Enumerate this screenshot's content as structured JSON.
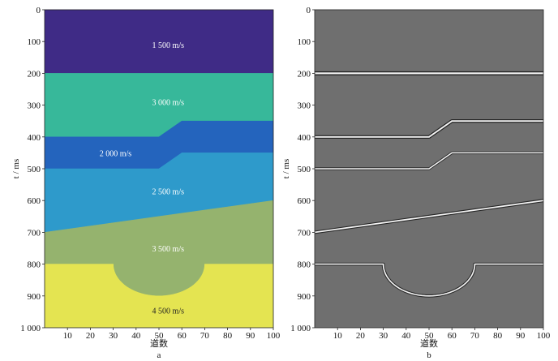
{
  "figure": {
    "y_axis_title": "t / ms",
    "x_axis_title": "道数",
    "background_gray": "#6f6f6f"
  },
  "chart_data": [
    {
      "panel": "a",
      "type": "velocity-model",
      "xlabel": "道数",
      "ylabel": "t / ms",
      "xlim": [
        0,
        100
      ],
      "ylim": [
        0,
        1000
      ],
      "xticks": [
        10,
        20,
        30,
        40,
        50,
        60,
        70,
        80,
        90,
        100
      ],
      "yticks": [
        0,
        100,
        200,
        300,
        400,
        500,
        600,
        700,
        800,
        900,
        1000
      ],
      "ytick_labels": [
        "0",
        "100",
        "200",
        "300",
        "400",
        "500",
        "600",
        "700",
        "800",
        "900",
        "1 000"
      ],
      "caption": "a",
      "layers": [
        {
          "label": "1 500 m/s",
          "color": "#3f2b86",
          "top": [
            [
              0,
              0
            ],
            [
              100,
              0
            ]
          ],
          "bottom": [
            [
              0,
              200
            ],
            [
              100,
              200
            ]
          ],
          "label_at": [
            54,
            110
          ]
        },
        {
          "label": "3 000 m/s",
          "color": "#37b89a",
          "top": [
            [
              0,
              200
            ],
            [
              100,
              200
            ]
          ],
          "bottom": [
            [
              0,
              400
            ],
            [
              50,
              400
            ],
            [
              60,
              350
            ],
            [
              100,
              350
            ]
          ],
          "label_at": [
            54,
            290
          ]
        },
        {
          "label": "2 000 m/s",
          "color": "#2464bd",
          "top": [
            [
              0,
              400
            ],
            [
              50,
              400
            ],
            [
              60,
              350
            ],
            [
              100,
              350
            ]
          ],
          "bottom": [
            [
              0,
              500
            ],
            [
              50,
              500
            ],
            [
              60,
              450
            ],
            [
              100,
              450
            ]
          ],
          "label_at": [
            31,
            450
          ]
        },
        {
          "label": "2 500 m/s",
          "color": "#2e9acb",
          "top": [
            [
              0,
              500
            ],
            [
              50,
              500
            ],
            [
              60,
              450
            ],
            [
              100,
              450
            ]
          ],
          "bottom": [
            [
              0,
              700
            ],
            [
              100,
              600
            ]
          ],
          "label_at": [
            54,
            570
          ]
        },
        {
          "label": "3 500 m/s",
          "color": "#95b36e",
          "top": [
            [
              0,
              700
            ],
            [
              100,
              600
            ]
          ],
          "bottom": [
            [
              0,
              800
            ],
            [
              30,
              800
            ],
            [
              50,
              900
            ],
            [
              70,
              800
            ],
            [
              100,
              800
            ]
          ],
          "label_at": [
            54,
            750
          ]
        },
        {
          "label": "4 500 m/s",
          "color": "#e4e451",
          "top": [
            [
              0,
              800
            ],
            [
              30,
              800
            ],
            [
              50,
              900
            ],
            [
              70,
              800
            ],
            [
              100,
              800
            ]
          ],
          "bottom": [
            [
              0,
              1000
            ],
            [
              100,
              1000
            ]
          ],
          "label_at": [
            54,
            945
          ]
        }
      ]
    },
    {
      "panel": "b",
      "type": "seismic-section",
      "xlabel": "道数",
      "ylabel": "t / ms",
      "xlim": [
        0,
        100
      ],
      "ylim": [
        0,
        1000
      ],
      "xticks": [
        10,
        20,
        30,
        40,
        50,
        60,
        70,
        80,
        90,
        100
      ],
      "yticks": [
        0,
        100,
        200,
        300,
        400,
        500,
        600,
        700,
        800,
        900,
        1000
      ],
      "ytick_labels": [
        "0",
        "100",
        "200",
        "300",
        "400",
        "500",
        "600",
        "700",
        "800",
        "900",
        "1 000"
      ],
      "caption": "b",
      "reflectors": [
        {
          "points": [
            [
              0,
              200
            ],
            [
              100,
              200
            ]
          ],
          "strength": 1.0
        },
        {
          "points": [
            [
              0,
              400
            ],
            [
              50,
              400
            ],
            [
              60,
              350
            ],
            [
              100,
              350
            ]
          ],
          "strength": 0.8
        },
        {
          "points": [
            [
              0,
              500
            ],
            [
              50,
              500
            ],
            [
              60,
              450
            ],
            [
              100,
              450
            ]
          ],
          "strength": 0.5
        },
        {
          "points": [
            [
              0,
              700
            ],
            [
              100,
              600
            ]
          ],
          "strength": 0.7
        },
        {
          "points": [
            [
              0,
              800
            ],
            [
              30,
              800
            ],
            [
              50,
              900
            ],
            [
              70,
              800
            ],
            [
              100,
              800
            ]
          ],
          "strength": 0.6,
          "circular": true
        }
      ]
    }
  ]
}
